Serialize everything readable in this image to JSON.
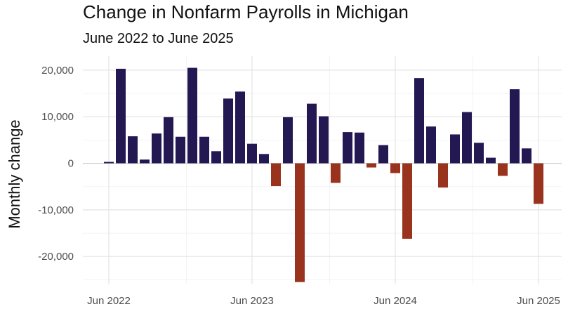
{
  "chart_data": {
    "type": "bar",
    "title": "Change in Nonfarm Payrolls in Michigan",
    "subtitle": "June 2022 to June 2025",
    "xlabel": "",
    "ylabel": "Monthly change",
    "ylim": [
      -26000,
      23000
    ],
    "yticks": [
      -20000,
      -10000,
      0,
      10000,
      20000
    ],
    "ytick_labels": [
      "-20,000",
      "-10,000",
      "0",
      "10,000",
      "20,000"
    ],
    "xticks": [
      "2022-06",
      "2023-06",
      "2024-06",
      "2025-06"
    ],
    "xtick_labels": [
      "Jun 2022",
      "Jun 2023",
      "Jun 2024",
      "Jun 2025"
    ],
    "grid": true,
    "colors": {
      "positive": "#231852",
      "negative": "#9a331e"
    },
    "categories": [
      "2022-06",
      "2022-07",
      "2022-08",
      "2022-09",
      "2022-10",
      "2022-11",
      "2022-12",
      "2023-01",
      "2023-02",
      "2023-03",
      "2023-04",
      "2023-05",
      "2023-06",
      "2023-07",
      "2023-08",
      "2023-09",
      "2023-10",
      "2023-11",
      "2023-12",
      "2024-01",
      "2024-02",
      "2024-03",
      "2024-04",
      "2024-05",
      "2024-06",
      "2024-07",
      "2024-08",
      "2024-09",
      "2024-10",
      "2024-11",
      "2024-12",
      "2025-01",
      "2025-02",
      "2025-03",
      "2025-04",
      "2025-05",
      "2025-06"
    ],
    "values": [
      300,
      20300,
      5800,
      800,
      6400,
      9900,
      5700,
      20500,
      5700,
      2600,
      13900,
      15400,
      4200,
      2000,
      -4900,
      9900,
      -25500,
      12800,
      10100,
      -4200,
      6700,
      6600,
      -900,
      3900,
      -2100,
      -16200,
      18300,
      7900,
      -5200,
      6200,
      11000,
      4400,
      1200,
      -2700,
      15900,
      3200,
      -8700
    ]
  }
}
